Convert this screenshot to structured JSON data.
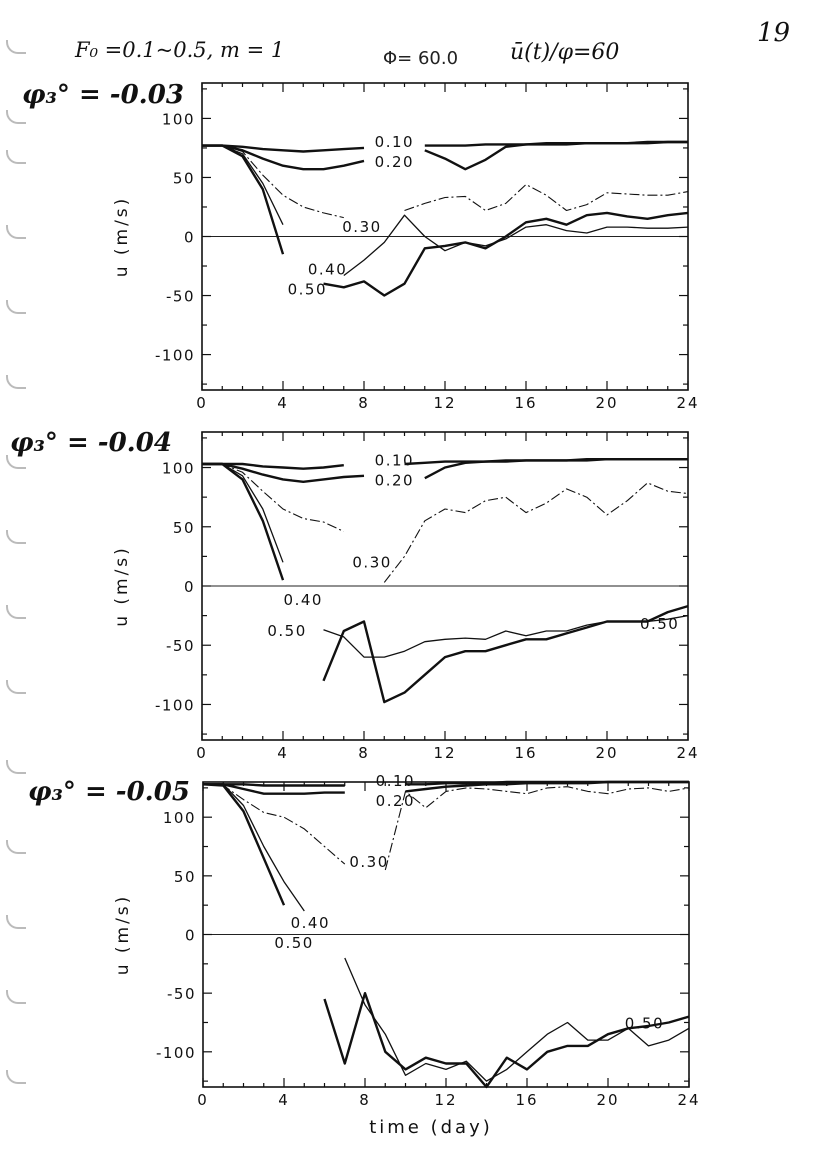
{
  "header": {
    "params": "F₀ =0.1~0.5,  m = 1",
    "phi": "Φ= 60.0",
    "quantity": "ū(t)/φ=60",
    "page_number": "19"
  },
  "chart_data": [
    {
      "type": "line",
      "title": "φ₃° = -0.03",
      "xlabel": "",
      "ylabel": "u (m/s)",
      "xlim": [
        0,
        24
      ],
      "ylim": [
        -130,
        130
      ],
      "xticks": [
        "0",
        "4",
        "8",
        "12",
        "16",
        "20",
        "24"
      ],
      "yticks": [
        "100",
        "50",
        "0",
        "-50",
        "-100"
      ],
      "grid": false,
      "x": [
        0,
        1,
        2,
        3,
        4,
        5,
        6,
        7,
        8,
        9,
        10,
        11,
        12,
        13,
        14,
        15,
        16,
        17,
        18,
        19,
        20,
        21,
        22,
        23,
        24
      ],
      "series": [
        {
          "name": "0.10",
          "style": "thick",
          "values": [
            77,
            77,
            76,
            74,
            73,
            72,
            73,
            74,
            75,
            null,
            null,
            77,
            77,
            77,
            78,
            78,
            78,
            79,
            79,
            79,
            79,
            79,
            80,
            80,
            80
          ]
        },
        {
          "name": "0.20",
          "style": "thick",
          "values": [
            77,
            77,
            73,
            66,
            60,
            57,
            57,
            60,
            64,
            null,
            null,
            73,
            66,
            57,
            65,
            76,
            78,
            78,
            78,
            79,
            79,
            79,
            79,
            80,
            80
          ]
        },
        {
          "name": "0.30",
          "style": "dashdot",
          "values": [
            77,
            77,
            72,
            52,
            35,
            25,
            20,
            16,
            null,
            null,
            22,
            28,
            33,
            34,
            22,
            28,
            44,
            35,
            22,
            27,
            37,
            36,
            35,
            35,
            38
          ]
        },
        {
          "name": "0.40",
          "style": "thin",
          "values": [
            77,
            77,
            70,
            45,
            10,
            null,
            null,
            -33,
            -20,
            -5,
            18,
            0,
            -12,
            -5,
            -8,
            -2,
            8,
            10,
            5,
            3,
            8,
            8,
            7,
            7,
            8
          ]
        },
        {
          "name": "0.50",
          "style": "thick",
          "values": [
            77,
            77,
            68,
            40,
            -15,
            null,
            -40,
            -43,
            -38,
            -50,
            -40,
            -10,
            -8,
            -5,
            -10,
            0,
            12,
            15,
            10,
            18,
            20,
            17,
            15,
            18,
            20
          ]
        }
      ],
      "labels": [
        {
          "text": "0.10",
          "x": 9.5,
          "y": 80
        },
        {
          "text": "0.20",
          "x": 9.5,
          "y": 68
        },
        {
          "text": "0.30",
          "x": 7.9,
          "y": 8
        },
        {
          "text": "0.40",
          "x": 6.2,
          "y": -28
        },
        {
          "text": "0.50",
          "x": 5.2,
          "y": -33
        }
      ]
    },
    {
      "type": "line",
      "title": "φ₃° = -0.04",
      "xlabel": "",
      "ylabel": "u (m/s)",
      "xlim": [
        0,
        24
      ],
      "ylim": [
        -130,
        130
      ],
      "xticks": [
        "0",
        "4",
        "8",
        "12",
        "16",
        "20",
        "24"
      ],
      "yticks": [
        "100",
        "50",
        "0",
        "-50",
        "-100"
      ],
      "grid": false,
      "x": [
        0,
        1,
        2,
        3,
        4,
        5,
        6,
        7,
        8,
        9,
        10,
        11,
        12,
        13,
        14,
        15,
        16,
        17,
        18,
        19,
        20,
        21,
        22,
        23,
        24
      ],
      "series": [
        {
          "name": "0.10",
          "style": "thick",
          "values": [
            103,
            103,
            103,
            101,
            100,
            99,
            100,
            102,
            null,
            null,
            103,
            104,
            105,
            105,
            105,
            106,
            106,
            106,
            106,
            107,
            107,
            107,
            107,
            107,
            107
          ]
        },
        {
          "name": "0.20",
          "style": "thick",
          "values": [
            103,
            103,
            99,
            94,
            90,
            88,
            90,
            92,
            93,
            null,
            null,
            91,
            100,
            104,
            105,
            105,
            106,
            106,
            106,
            106,
            107,
            107,
            107,
            107,
            107
          ]
        },
        {
          "name": "0.30",
          "style": "dashdot",
          "values": [
            103,
            103,
            96,
            80,
            65,
            57,
            54,
            46,
            null,
            3,
            25,
            55,
            65,
            62,
            72,
            75,
            62,
            70,
            82,
            75,
            60,
            72,
            87,
            80,
            78
          ]
        },
        {
          "name": "0.40",
          "style": "thin",
          "values": [
            103,
            103,
            93,
            65,
            20,
            null,
            -37,
            -43,
            -60,
            -60,
            -55,
            -47,
            -45,
            -44,
            -45,
            -38,
            -42,
            -38,
            -38,
            -33,
            -30,
            -30,
            -30,
            -28,
            -25
          ]
        },
        {
          "name": "0.50",
          "style": "thick",
          "values": [
            103,
            103,
            90,
            55,
            5,
            null,
            -80,
            -38,
            -30,
            -98,
            -90,
            -75,
            -60,
            -55,
            -55,
            -50,
            -45,
            -45,
            -40,
            -35,
            -30,
            -30,
            -30,
            -22,
            -17
          ]
        }
      ],
      "labels": [
        {
          "text": "0.10",
          "x": 9.5,
          "y": 106
        },
        {
          "text": "0.20",
          "x": 9.5,
          "y": 93
        },
        {
          "text": "0.30",
          "x": 8.4,
          "y": 20
        },
        {
          "text": "0.40",
          "x": 5.0,
          "y": -12
        },
        {
          "text": "0.50",
          "x": 4.2,
          "y": -38
        },
        {
          "text": "0.50",
          "x": 22.6,
          "y": -32
        }
      ]
    },
    {
      "type": "line",
      "title": "φ₃° = -0.05",
      "xlabel": "time (day)",
      "ylabel": "u (m/s)",
      "xlim": [
        0,
        24
      ],
      "ylim": [
        -130,
        130
      ],
      "xticks": [
        "0",
        "4",
        "8",
        "12",
        "16",
        "20",
        "24"
      ],
      "yticks": [
        "100",
        "50",
        "0",
        "-50",
        "-100"
      ],
      "grid": false,
      "x": [
        0,
        1,
        2,
        3,
        4,
        5,
        6,
        7,
        8,
        9,
        10,
        11,
        12,
        13,
        14,
        15,
        16,
        17,
        18,
        19,
        20,
        21,
        22,
        23,
        24
      ],
      "series": [
        {
          "name": "0.10",
          "style": "thick",
          "values": [
            128,
            128,
            128,
            127,
            127,
            127,
            127,
            127,
            null,
            null,
            128,
            128,
            129,
            129,
            129,
            130,
            130,
            130,
            130,
            130,
            130,
            130,
            130,
            130,
            130
          ]
        },
        {
          "name": "0.20",
          "style": "thick",
          "values": [
            128,
            128,
            124,
            120,
            120,
            120,
            121,
            121,
            null,
            null,
            122,
            124,
            126,
            127,
            128,
            128,
            129,
            129,
            129,
            129,
            130,
            130,
            130,
            130,
            130
          ]
        },
        {
          "name": "0.30",
          "style": "dashdot",
          "values": [
            128,
            127,
            115,
            104,
            100,
            90,
            75,
            60,
            null,
            55,
            122,
            108,
            122,
            125,
            124,
            122,
            120,
            125,
            126,
            122,
            120,
            124,
            125,
            122,
            125
          ]
        },
        {
          "name": "0.40",
          "style": "thin",
          "values": [
            128,
            128,
            110,
            75,
            45,
            20,
            null,
            -20,
            -60,
            -85,
            -120,
            -110,
            -115,
            -108,
            -125,
            -115,
            -100,
            -85,
            -75,
            -90,
            -90,
            -80,
            -95,
            -90,
            -80
          ]
        },
        {
          "name": "0.50",
          "style": "thick",
          "values": [
            128,
            127,
            105,
            65,
            25,
            null,
            -55,
            -110,
            -50,
            -100,
            -115,
            -105,
            -110,
            -110,
            -130,
            -105,
            -115,
            -100,
            -95,
            -95,
            -85,
            -80,
            -78,
            -75,
            -70
          ]
        }
      ],
      "labels": [
        {
          "text": "0.10",
          "x": 9.5,
          "y": 131
        },
        {
          "text": "0.20",
          "x": 9.5,
          "y": 119
        },
        {
          "text": "0.30",
          "x": 8.2,
          "y": 62
        },
        {
          "text": "0.40",
          "x": 5.3,
          "y": 10
        },
        {
          "text": "0.50",
          "x": 4.5,
          "y": -5
        },
        {
          "text": "0.50",
          "x": 21.8,
          "y": -76
        }
      ]
    }
  ]
}
